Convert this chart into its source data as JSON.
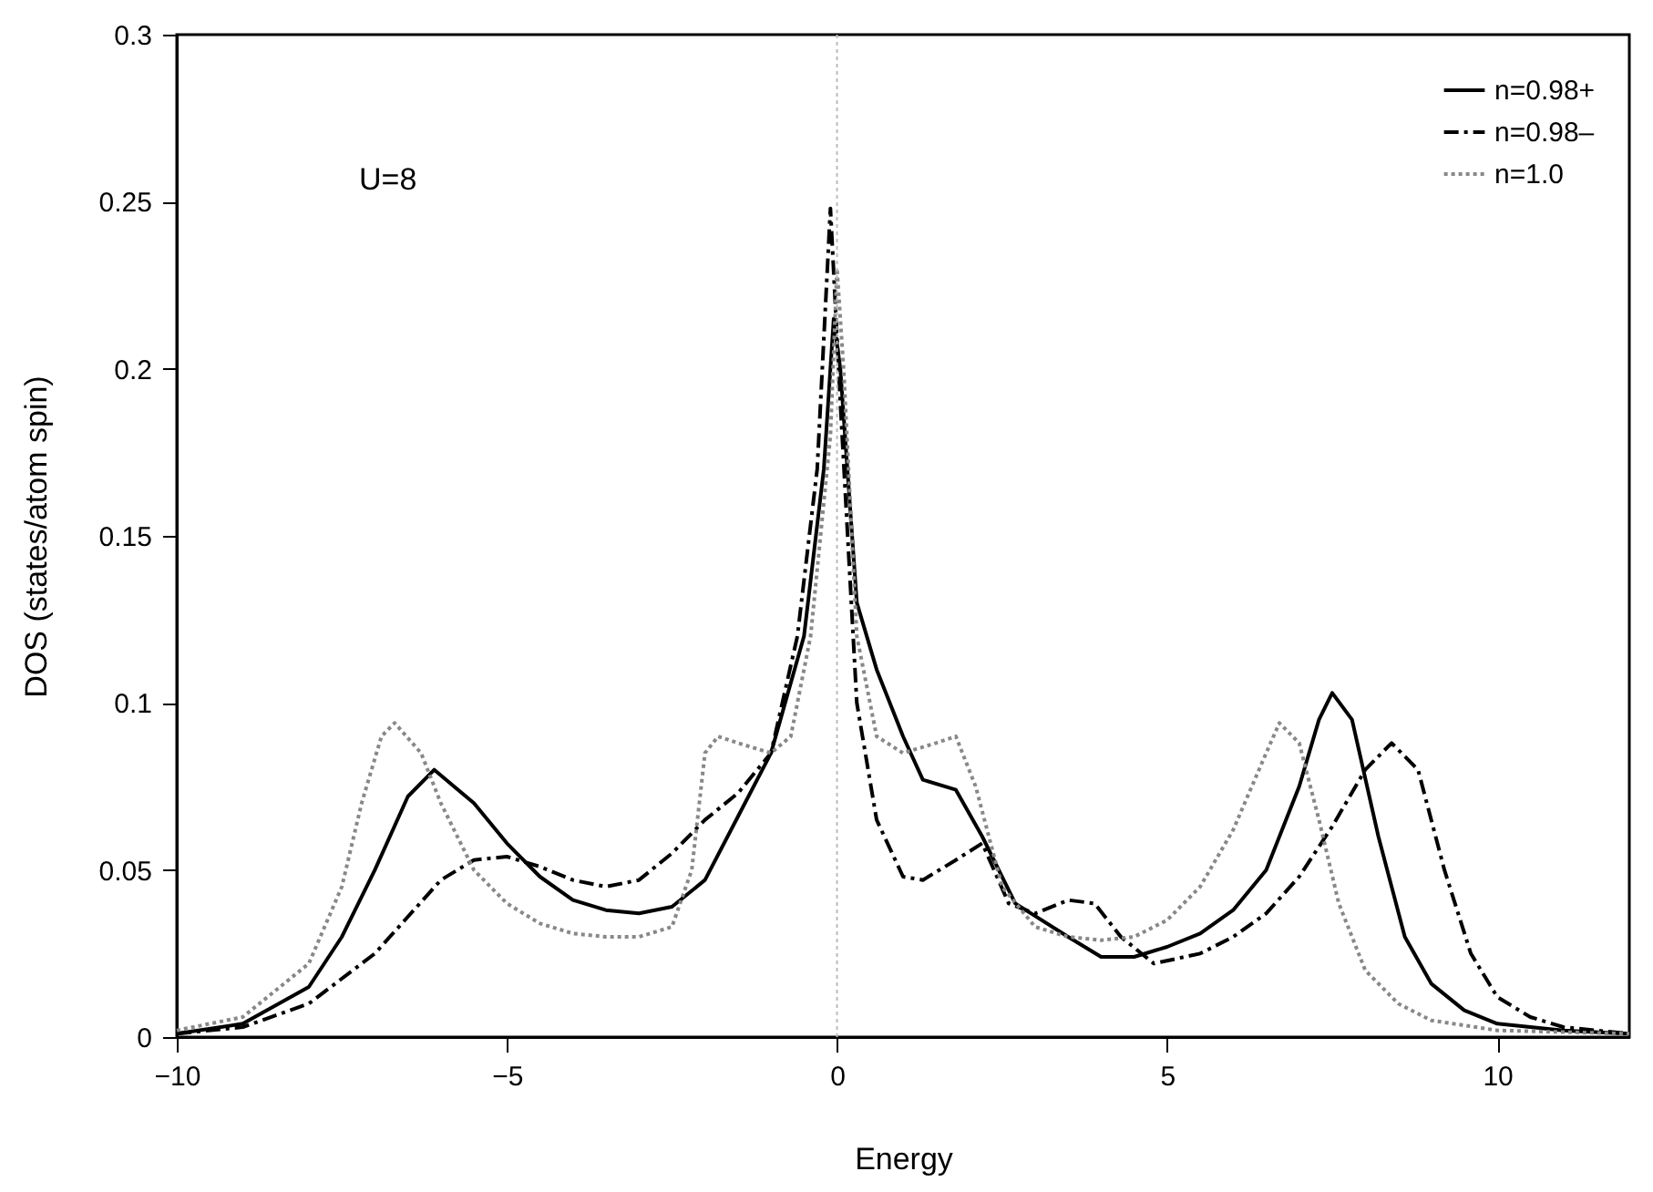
{
  "chart_data": {
    "type": "line",
    "xlabel": "Energy",
    "ylabel": "DOS  (states/atom spin)",
    "annotations": [
      "U=8"
    ],
    "xlim": [
      -10,
      12
    ],
    "xticks": [
      -10,
      -5,
      0,
      5,
      10
    ],
    "ylim": [
      0,
      0.3
    ],
    "yticks": [
      0,
      0.05,
      0.1,
      0.15,
      0.2,
      0.25,
      0.3
    ],
    "grid": false,
    "legend": "top right",
    "marker": "none",
    "ref_lines": [
      {
        "axis": "x",
        "value": 0,
        "color": "#bbbbbb",
        "line_style": "dotted"
      }
    ],
    "series": [
      {
        "name": "n=0.98+",
        "color": "#000000",
        "line_style": "solid",
        "x": [
          -10,
          -9,
          -8,
          -7.5,
          -7,
          -6.5,
          -6.1,
          -5.5,
          -5,
          -4.5,
          -4,
          -3.5,
          -3,
          -2.5,
          -2,
          -1.5,
          -1,
          -0.5,
          -0.2,
          -0.05,
          0.05,
          0.3,
          0.6,
          1,
          1.3,
          1.8,
          2.2,
          2.7,
          3.5,
          4,
          4.5,
          5,
          5.5,
          6,
          6.5,
          7,
          7.3,
          7.5,
          7.8,
          8.2,
          8.6,
          9,
          9.5,
          10,
          11,
          12
        ],
        "values": [
          0.001,
          0.004,
          0.015,
          0.03,
          0.05,
          0.072,
          0.08,
          0.07,
          0.058,
          0.048,
          0.041,
          0.038,
          0.037,
          0.039,
          0.047,
          0.066,
          0.085,
          0.12,
          0.17,
          0.215,
          0.2,
          0.13,
          0.11,
          0.09,
          0.077,
          0.074,
          0.06,
          0.04,
          0.03,
          0.024,
          0.024,
          0.027,
          0.031,
          0.038,
          0.05,
          0.075,
          0.095,
          0.103,
          0.095,
          0.06,
          0.03,
          0.016,
          0.008,
          0.004,
          0.002,
          0.001
        ]
      },
      {
        "name": "n=0.98–",
        "color": "#000000",
        "line_style": "dashed",
        "x": [
          -10,
          -9,
          -8,
          -7,
          -6.5,
          -6,
          -5.5,
          -5,
          -4.5,
          -4,
          -3.5,
          -3,
          -2.5,
          -2,
          -1.5,
          -1,
          -0.6,
          -0.3,
          -0.1,
          0.05,
          0.3,
          0.6,
          1,
          1.3,
          1.8,
          2.2,
          2.6,
          3,
          3.5,
          3.9,
          4.3,
          4.8,
          5.5,
          6,
          6.5,
          7,
          7.5,
          8,
          8.4,
          8.8,
          9.2,
          9.6,
          10,
          10.5,
          11,
          12
        ],
        "values": [
          0.001,
          0.003,
          0.01,
          0.025,
          0.036,
          0.047,
          0.053,
          0.054,
          0.051,
          0.047,
          0.045,
          0.047,
          0.055,
          0.065,
          0.073,
          0.085,
          0.12,
          0.17,
          0.248,
          0.19,
          0.1,
          0.065,
          0.048,
          0.047,
          0.053,
          0.058,
          0.04,
          0.037,
          0.041,
          0.04,
          0.03,
          0.022,
          0.025,
          0.03,
          0.037,
          0.048,
          0.063,
          0.08,
          0.088,
          0.08,
          0.05,
          0.025,
          0.012,
          0.006,
          0.003,
          0.001
        ]
      },
      {
        "name": "n=1.0",
        "color": "#888888",
        "line_style": "dotted",
        "x": [
          -10,
          -9,
          -8,
          -7.5,
          -7.2,
          -6.9,
          -6.7,
          -6.3,
          -6,
          -5.5,
          -5,
          -4.5,
          -4,
          -3.5,
          -3,
          -2.5,
          -2.2,
          -2,
          -1.8,
          -1.5,
          -1,
          -0.7,
          -0.4,
          -0.1,
          0,
          0.1,
          0.3,
          0.6,
          1,
          1.5,
          1.8,
          2.1,
          2.5,
          3,
          3.5,
          4,
          4.5,
          5,
          5.5,
          6,
          6.5,
          6.7,
          7,
          7.3,
          7.6,
          8,
          8.5,
          9,
          10,
          12
        ],
        "values": [
          0.002,
          0.006,
          0.022,
          0.045,
          0.07,
          0.09,
          0.094,
          0.085,
          0.07,
          0.05,
          0.04,
          0.034,
          0.031,
          0.03,
          0.03,
          0.033,
          0.05,
          0.085,
          0.09,
          0.088,
          0.085,
          0.09,
          0.12,
          0.18,
          0.23,
          0.2,
          0.12,
          0.09,
          0.085,
          0.088,
          0.09,
          0.075,
          0.045,
          0.033,
          0.03,
          0.029,
          0.03,
          0.035,
          0.045,
          0.062,
          0.085,
          0.094,
          0.088,
          0.065,
          0.04,
          0.02,
          0.01,
          0.005,
          0.002,
          0.001
        ]
      }
    ]
  }
}
